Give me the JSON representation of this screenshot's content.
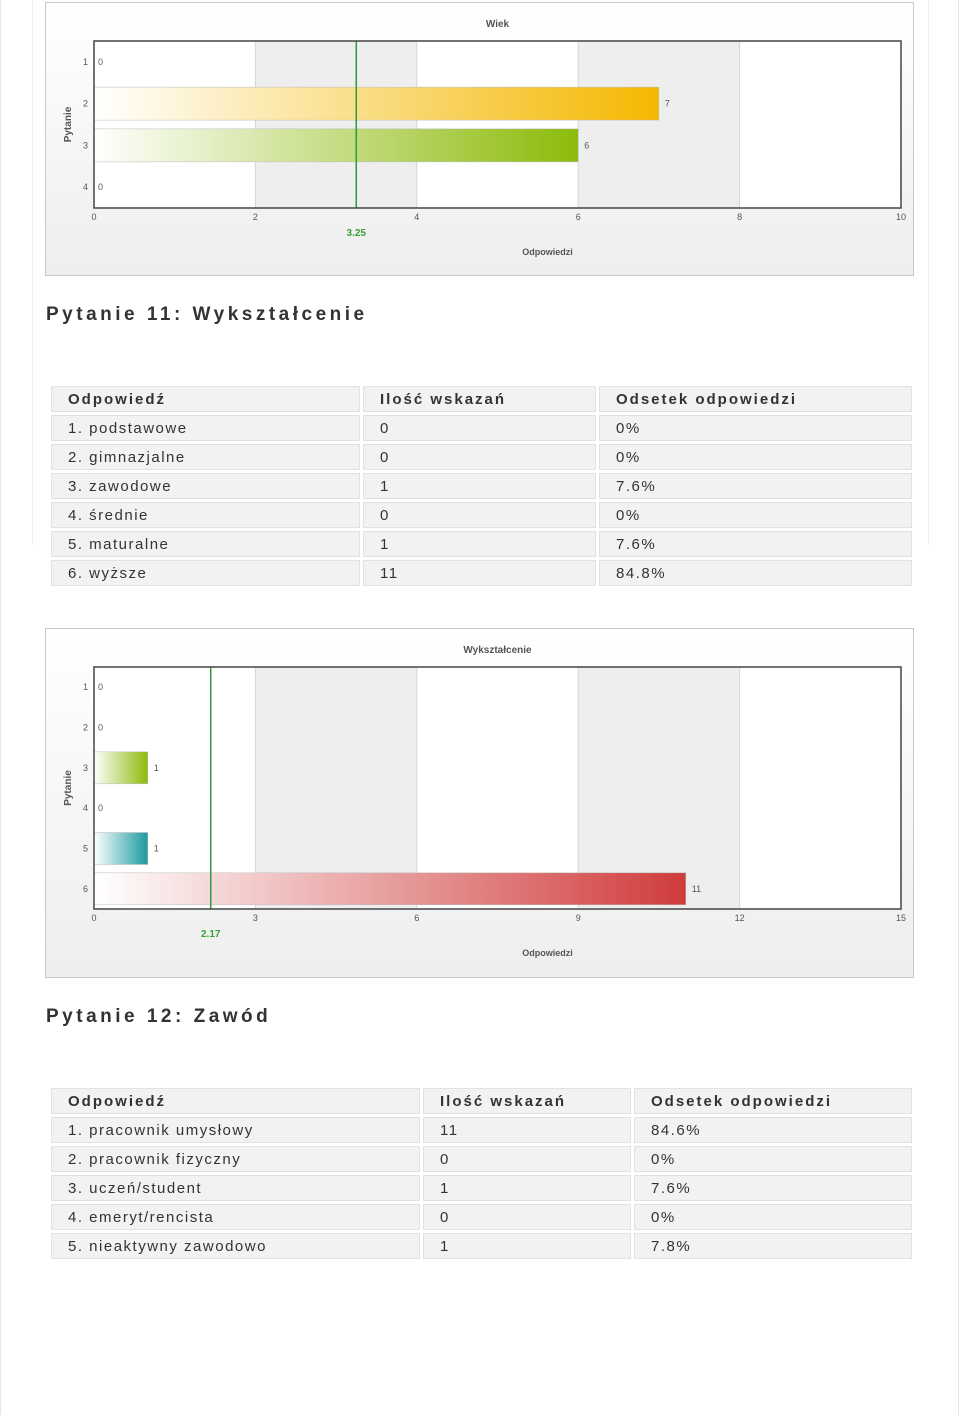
{
  "sections": {
    "q11_title": "Pytanie 11: Wykształcenie",
    "q12_title": "Pytanie 12: Zawód"
  },
  "table11": {
    "headers": [
      "Odpowiedź",
      "Ilość wskazań",
      "Odsetek odpowiedzi"
    ],
    "rows": [
      [
        "1. podstawowe",
        "0",
        "0%"
      ],
      [
        "2. gimnazjalne",
        "0",
        "0%"
      ],
      [
        "3. zawodowe",
        "1",
        "7.6%"
      ],
      [
        "4. średnie",
        "0",
        "0%"
      ],
      [
        "5. maturalne",
        "1",
        "7.6%"
      ],
      [
        "6. wyższe",
        "11",
        "84.8%"
      ]
    ]
  },
  "table12": {
    "headers": [
      "Odpowiedź",
      "Ilość wskazań",
      "Odsetek odpowiedzi"
    ],
    "rows": [
      [
        "1. pracownik umysłowy",
        "11",
        "84.6%"
      ],
      [
        "2. pracownik fizyczny",
        "0",
        "0%"
      ],
      [
        "3. uczeń/student",
        "1",
        "7.6%"
      ],
      [
        "4. emeryt/rencista",
        "0",
        "0%"
      ],
      [
        "5. nieaktywny zawodowo",
        "1",
        "7.8%"
      ]
    ]
  },
  "chart_data": [
    {
      "type": "bar",
      "orientation": "horizontal",
      "title": "Wiek",
      "xlabel": "Odpowiedzi",
      "ylabel": "Pytanie",
      "categories": [
        "1",
        "2",
        "3",
        "4"
      ],
      "values": [
        0,
        7,
        6,
        0
      ],
      "xlim": [
        0,
        10
      ],
      "xticks": [
        0,
        2,
        4,
        6,
        8,
        10
      ],
      "average": 3.25,
      "colors": [
        "#f5b800",
        "#f5b800",
        "#8cbb0a",
        "#8cbb0a"
      ]
    },
    {
      "type": "bar",
      "orientation": "horizontal",
      "title": "Wykształcenie",
      "xlabel": "Odpowiedzi",
      "ylabel": "Pytanie",
      "categories": [
        "1",
        "2",
        "3",
        "4",
        "5",
        "6"
      ],
      "values": [
        0,
        0,
        1,
        0,
        1,
        11
      ],
      "xlim": [
        0,
        15
      ],
      "xticks": [
        0,
        3,
        6,
        9,
        12,
        15
      ],
      "average": 2.17,
      "colors": [
        "#8cbb0a",
        "#8cbb0a",
        "#8cbb0a",
        "#1a9aa0",
        "#1a9aa0",
        "#d03c3c"
      ]
    }
  ]
}
